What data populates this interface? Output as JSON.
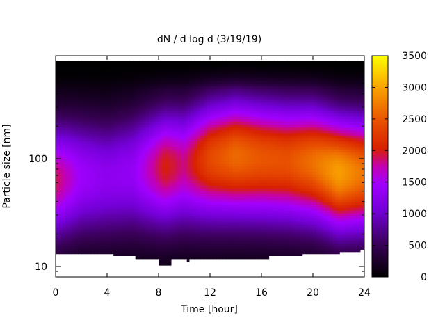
{
  "chart_data": {
    "type": "heatmap",
    "title": "dN / d log d (3/19/19)",
    "xlabel": "Time [hour]",
    "ylabel": "Particle size [nm]",
    "x_ticks": [
      "0",
      "4",
      "8",
      "12",
      "16",
      "20",
      "24"
    ],
    "y_ticks": [
      "10",
      "100"
    ],
    "y_scale": "log",
    "xlim": [
      0,
      24
    ],
    "ylim_nm": [
      8,
      900
    ],
    "colorbar": {
      "ticks": [
        "0",
        "500",
        "1000",
        "1500",
        "2000",
        "2500",
        "3000",
        "3500"
      ],
      "range": [
        0,
        3500
      ],
      "colormap": "gnuplot pm3d (black-purple-red-orange-yellow)"
    },
    "grid": false,
    "size_range_nm": {
      "upper": 800,
      "lower_edge": [
        {
          "t": 0,
          "d": 13
        },
        {
          "t": 4.5,
          "d": 13
        },
        {
          "t": 4.5,
          "d": 12.5
        },
        {
          "t": 6.2,
          "d": 12.5
        },
        {
          "t": 6.2,
          "d": 11.7
        },
        {
          "t": 8,
          "d": 11.7
        },
        {
          "t": 8,
          "d": 10.2
        },
        {
          "t": 9,
          "d": 10.2
        },
        {
          "t": 9,
          "d": 11.7
        },
        {
          "t": 10.2,
          "d": 11.7
        },
        {
          "t": 10.2,
          "d": 11
        },
        {
          "t": 10.4,
          "d": 11
        },
        {
          "t": 10.4,
          "d": 11.7
        },
        {
          "t": 16.6,
          "d": 11.7
        },
        {
          "t": 16.6,
          "d": 12.5
        },
        {
          "t": 19.2,
          "d": 12.5
        },
        {
          "t": 19.2,
          "d": 13
        },
        {
          "t": 22.1,
          "d": 13
        },
        {
          "t": 22.1,
          "d": 13.6
        },
        {
          "t": 23.7,
          "d": 13.6
        },
        {
          "t": 23.7,
          "d": 14.3
        },
        {
          "t": 24,
          "d": 14.3
        }
      ]
    },
    "peak": [
      {
        "t": 0,
        "d_nm": 70,
        "dNdlogd": 1600
      },
      {
        "t": 2,
        "d_nm": 80,
        "dNdlogd": 1150
      },
      {
        "t": 4,
        "d_nm": 80,
        "dNdlogd": 1000
      },
      {
        "t": 6,
        "d_nm": 90,
        "dNdlogd": 1100
      },
      {
        "t": 8.5,
        "d_nm": 95,
        "dNdlogd": 1800
      },
      {
        "t": 10,
        "d_nm": 100,
        "dNdlogd": 1600
      },
      {
        "t": 12,
        "d_nm": 110,
        "dNdlogd": 2200
      },
      {
        "t": 14,
        "d_nm": 115,
        "dNdlogd": 2450
      },
      {
        "t": 16,
        "d_nm": 110,
        "dNdlogd": 2300
      },
      {
        "t": 18,
        "d_nm": 105,
        "dNdlogd": 2250
      },
      {
        "t": 20,
        "d_nm": 100,
        "dNdlogd": 2450
      },
      {
        "t": 22,
        "d_nm": 80,
        "dNdlogd": 2700
      },
      {
        "t": 24,
        "d_nm": 80,
        "dNdlogd": 2400
      }
    ]
  }
}
